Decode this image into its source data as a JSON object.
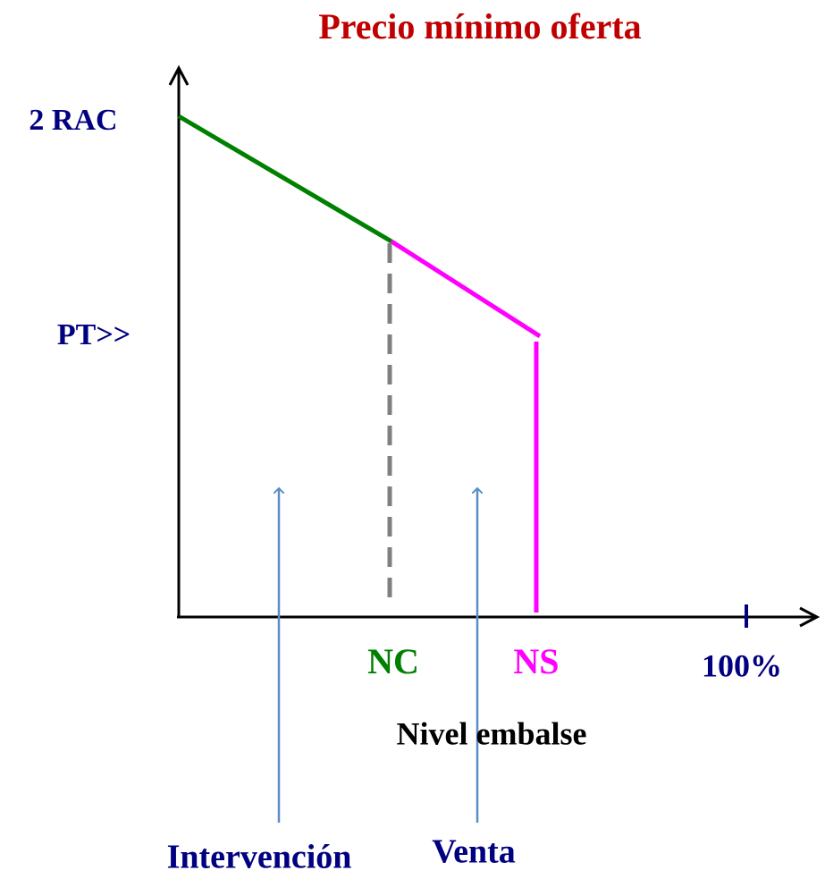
{
  "title": "Precio mínimo oferta",
  "y_labels": [
    "2 RAC",
    "PT>>"
  ],
  "x_labels": [
    "NC",
    "NS",
    "100%"
  ],
  "x_axis_label": "Nivel embalse",
  "regions": [
    "Intervención",
    "Venta"
  ]
}
